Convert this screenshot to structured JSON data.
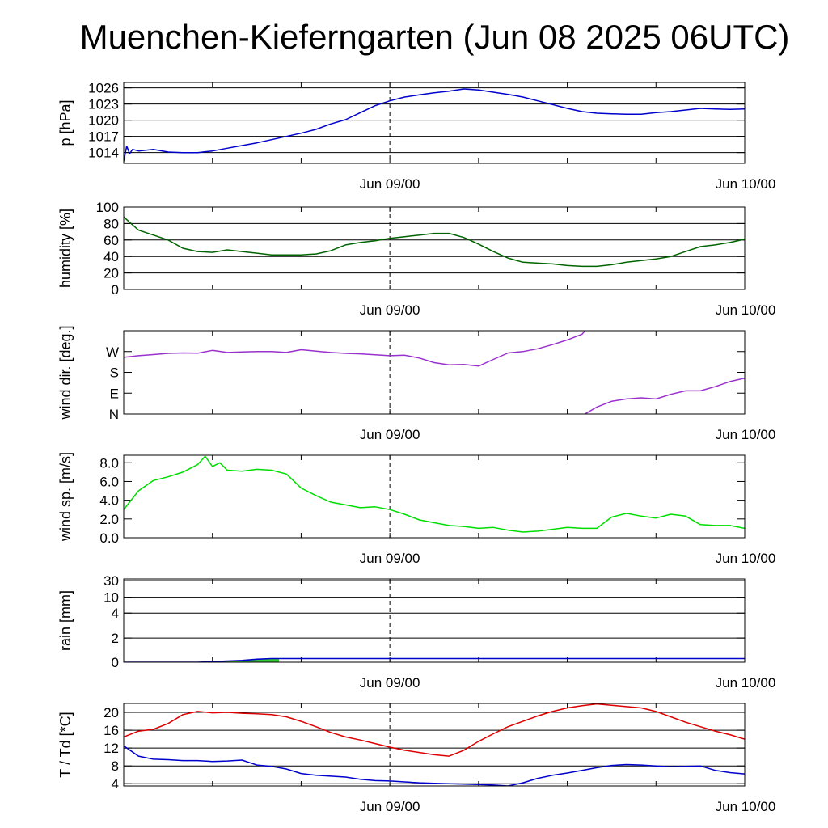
{
  "title": "Muenchen-Kieferngarten (Jun 08 2025 06UTC)",
  "chart_data": [
    {
      "type": "line",
      "ylabel": "p [hPa]",
      "y_ticks": [
        "1014",
        "1017",
        "1020",
        "1023",
        "1026"
      ],
      "y_tick_values": [
        1014,
        1017,
        1020,
        1023,
        1026
      ],
      "ylim": [
        1012,
        1027
      ],
      "x_range_hours": [
        0,
        42
      ],
      "x_tick_labels": [
        {
          "label": "Jun 09/00",
          "hour": 18
        },
        {
          "label": "Jun 10/00",
          "hour": 42
        }
      ],
      "grid": "horizontal",
      "colors": {
        "line": "#0000cc"
      },
      "series": [
        {
          "x": [
            0,
            0.2,
            0.4,
            0.6,
            1,
            2,
            3,
            4,
            5,
            6,
            7,
            8,
            9,
            10,
            11,
            12,
            13,
            14,
            15,
            16,
            17,
            18,
            19,
            20,
            21,
            22,
            23,
            24,
            25,
            26,
            27,
            28,
            29,
            30,
            31,
            32,
            33,
            34,
            35,
            36,
            37,
            38,
            39,
            40,
            41,
            42
          ],
          "values": [
            1012.4,
            1015.2,
            1013.8,
            1014.6,
            1014.3,
            1014.6,
            1014.1,
            1014.0,
            1014.0,
            1014.3,
            1014.8,
            1015.3,
            1015.8,
            1016.4,
            1017.0,
            1017.6,
            1018.3,
            1019.3,
            1020.1,
            1021.4,
            1022.7,
            1023.6,
            1024.3,
            1024.7,
            1025.1,
            1025.4,
            1025.8,
            1025.6,
            1025.2,
            1024.8,
            1024.3,
            1023.6,
            1022.9,
            1022.2,
            1021.6,
            1021.3,
            1021.2,
            1021.1,
            1021.1,
            1021.4,
            1021.6,
            1021.9,
            1022.2,
            1022.1,
            1022.0,
            1022.1
          ]
        }
      ]
    },
    {
      "type": "line",
      "ylabel": "humidity [%]",
      "y_ticks": [
        "0",
        "20",
        "40",
        "60",
        "80",
        "100"
      ],
      "y_tick_values": [
        0,
        20,
        40,
        60,
        80,
        100
      ],
      "ylim": [
        0,
        100
      ],
      "x_range_hours": [
        0,
        42
      ],
      "x_tick_labels": [
        {
          "label": "Jun 09/00",
          "hour": 18
        },
        {
          "label": "Jun 10/00",
          "hour": 42
        }
      ],
      "grid": "horizontal",
      "colors": {
        "line": "#006400"
      },
      "series": [
        {
          "x": [
            0,
            0.5,
            1,
            2,
            3,
            4,
            5,
            6,
            7,
            8,
            9,
            10,
            11,
            12,
            13,
            14,
            15,
            16,
            17,
            18,
            19,
            20,
            21,
            22,
            23,
            24,
            25,
            26,
            27,
            28,
            29,
            30,
            31,
            32,
            33,
            34,
            35,
            36,
            37,
            38,
            39,
            40,
            41,
            42
          ],
          "values": [
            88,
            80,
            72,
            66,
            60,
            50,
            46,
            45,
            48,
            46,
            44,
            42,
            42,
            42,
            43,
            47,
            54,
            57,
            59,
            62,
            64,
            66,
            68,
            68,
            63,
            55,
            46,
            38,
            33,
            32,
            31,
            29,
            28,
            28,
            30,
            33,
            35,
            37,
            40,
            46,
            52,
            54,
            57,
            61
          ]
        }
      ]
    },
    {
      "type": "line",
      "ylabel": "wind dir. [deg.]",
      "y_ticks": [
        "N",
        "E",
        "S",
        "W"
      ],
      "y_tick_values": [
        0,
        90,
        180,
        270
      ],
      "ylim": [
        0,
        360
      ],
      "x_range_hours": [
        0,
        42
      ],
      "x_tick_labels": [
        {
          "label": "Jun 09/00",
          "hour": 18
        },
        {
          "label": "Jun 10/00",
          "hour": 42
        }
      ],
      "grid": "none",
      "colors": {
        "line": "#9932cc"
      },
      "series": [
        {
          "x": [
            0,
            1,
            2,
            3,
            4,
            5,
            6,
            7,
            8,
            9,
            10,
            11,
            12,
            13,
            14,
            15,
            16,
            17,
            18,
            19,
            20,
            21,
            22,
            23,
            24,
            25,
            26,
            27,
            28,
            29,
            30,
            31,
            31.2
          ],
          "values": [
            245,
            252,
            257,
            262,
            264,
            263,
            275,
            266,
            268,
            270,
            270,
            266,
            278,
            272,
            266,
            262,
            260,
            256,
            252,
            254,
            242,
            222,
            212,
            214,
            207,
            236,
            264,
            270,
            282,
            300,
            320,
            345,
            360
          ]
        },
        {
          "x": [
            31.2,
            32,
            33,
            34,
            35,
            36,
            37,
            38,
            39,
            40,
            41,
            42
          ],
          "values": [
            0,
            30,
            55,
            65,
            70,
            65,
            85,
            100,
            100,
            118,
            140,
            155
          ]
        }
      ]
    },
    {
      "type": "line",
      "ylabel": "wind sp. [m/s]",
      "y_ticks": [
        "0.0",
        "2.0",
        "4.0",
        "6.0",
        "8.0"
      ],
      "y_tick_values": [
        0,
        2,
        4,
        6,
        8
      ],
      "ylim": [
        0,
        8.8
      ],
      "x_range_hours": [
        0,
        42
      ],
      "x_tick_labels": [
        {
          "label": "Jun 09/00",
          "hour": 18
        },
        {
          "label": "Jun 10/00",
          "hour": 42
        }
      ],
      "grid": "none",
      "colors": {
        "line": "#00dd00"
      },
      "series": [
        {
          "x": [
            0,
            0.5,
            1,
            2,
            3,
            4,
            5,
            5.5,
            6,
            6.5,
            7,
            8,
            9,
            10,
            11,
            12,
            13,
            14,
            15,
            16,
            17,
            18,
            19,
            20,
            21,
            22,
            23,
            24,
            25,
            26,
            27,
            28,
            29,
            30,
            31,
            32,
            33,
            34,
            35,
            36,
            37,
            38,
            39,
            40,
            41,
            42
          ],
          "values": [
            3.0,
            4.0,
            5.0,
            6.1,
            6.5,
            7.0,
            7.8,
            8.7,
            7.6,
            8.0,
            7.2,
            7.1,
            7.3,
            7.2,
            6.8,
            5.3,
            4.5,
            3.8,
            3.5,
            3.2,
            3.3,
            3.0,
            2.5,
            1.9,
            1.6,
            1.3,
            1.2,
            1.0,
            1.1,
            0.8,
            0.6,
            0.7,
            0.9,
            1.1,
            1.0,
            1.0,
            2.2,
            2.6,
            2.3,
            2.1,
            2.5,
            2.3,
            1.4,
            1.3,
            1.3,
            1.0
          ]
        }
      ]
    },
    {
      "type": "area",
      "ylabel": "rain [mm]",
      "y_ticks": [
        "0",
        "2",
        "4",
        "10",
        "30"
      ],
      "y_tick_values": [
        0,
        2,
        4,
        10,
        30
      ],
      "y_scale": "nonlinear",
      "ylim": [
        0,
        30
      ],
      "x_range_hours": [
        0,
        42
      ],
      "x_tick_labels": [
        {
          "label": "Jun 09/00",
          "hour": 18
        },
        {
          "label": "Jun 10/00",
          "hour": 42
        }
      ],
      "grid": "horizontal",
      "colors": {
        "line": "#0000cc",
        "fill": "#33cc33"
      },
      "series": [
        {
          "x": [
            0,
            5,
            6,
            7,
            8,
            9,
            10,
            10.5,
            42
          ],
          "values": [
            0,
            0,
            0.05,
            0.1,
            0.15,
            0.25,
            0.3,
            0.3,
            0.3
          ]
        }
      ]
    },
    {
      "type": "line",
      "ylabel": "T / Td [*C]",
      "y_ticks": [
        "4",
        "8",
        "12",
        "16",
        "20"
      ],
      "y_tick_values": [
        4,
        8,
        12,
        16,
        20
      ],
      "ylim": [
        3.5,
        22
      ],
      "x_range_hours": [
        0,
        42
      ],
      "x_tick_labels": [
        {
          "label": "Jun 09/00",
          "hour": 18
        },
        {
          "label": "Jun 10/00",
          "hour": 42
        }
      ],
      "grid": "horizontal",
      "colors": {
        "line_t": "#dd0000",
        "line_td": "#0000cc"
      },
      "series": [
        {
          "x": [
            0,
            1,
            2,
            3,
            4,
            5,
            6,
            7,
            8,
            9,
            10,
            11,
            12,
            13,
            14,
            15,
            16,
            17,
            18,
            19,
            20,
            21,
            22,
            23,
            24,
            25,
            26,
            27,
            28,
            29,
            30,
            31,
            32,
            33,
            34,
            35,
            36,
            37,
            38,
            39,
            40,
            41,
            42
          ],
          "values": [
            14.5,
            15.8,
            16.2,
            17.5,
            19.5,
            20.2,
            19.9,
            20.0,
            19.8,
            19.7,
            19.5,
            19.0,
            18.0,
            16.8,
            15.5,
            14.5,
            13.8,
            13.0,
            12.2,
            11.5,
            11.0,
            10.5,
            10.2,
            11.5,
            13.5,
            15.2,
            16.8,
            18.0,
            19.2,
            20.2,
            21.0,
            21.5,
            21.9,
            21.6,
            21.3,
            21.0,
            20.2,
            19.0,
            17.8,
            16.8,
            15.8,
            15.0,
            14.0
          ]
        },
        {
          "x": [
            0,
            1,
            2,
            3,
            4,
            5,
            6,
            7,
            8,
            9,
            10,
            11,
            12,
            13,
            14,
            15,
            16,
            17,
            18,
            19,
            20,
            21,
            22,
            23,
            24,
            25,
            26,
            27,
            28,
            29,
            30,
            31,
            32,
            33,
            34,
            35,
            36,
            37,
            38,
            39,
            40,
            41,
            42
          ],
          "values": [
            12.5,
            10.2,
            9.5,
            9.4,
            9.2,
            9.2,
            9.0,
            9.1,
            9.3,
            8.2,
            7.9,
            7.3,
            6.3,
            5.9,
            5.7,
            5.5,
            5.0,
            4.7,
            4.6,
            4.4,
            4.2,
            4.1,
            4.0,
            3.9,
            3.8,
            3.7,
            3.5,
            4.2,
            5.2,
            5.9,
            6.4,
            7.0,
            7.6,
            8.1,
            8.3,
            8.2,
            8.0,
            7.8,
            7.9,
            8.0,
            7.0,
            6.5,
            6.2
          ]
        }
      ]
    }
  ]
}
